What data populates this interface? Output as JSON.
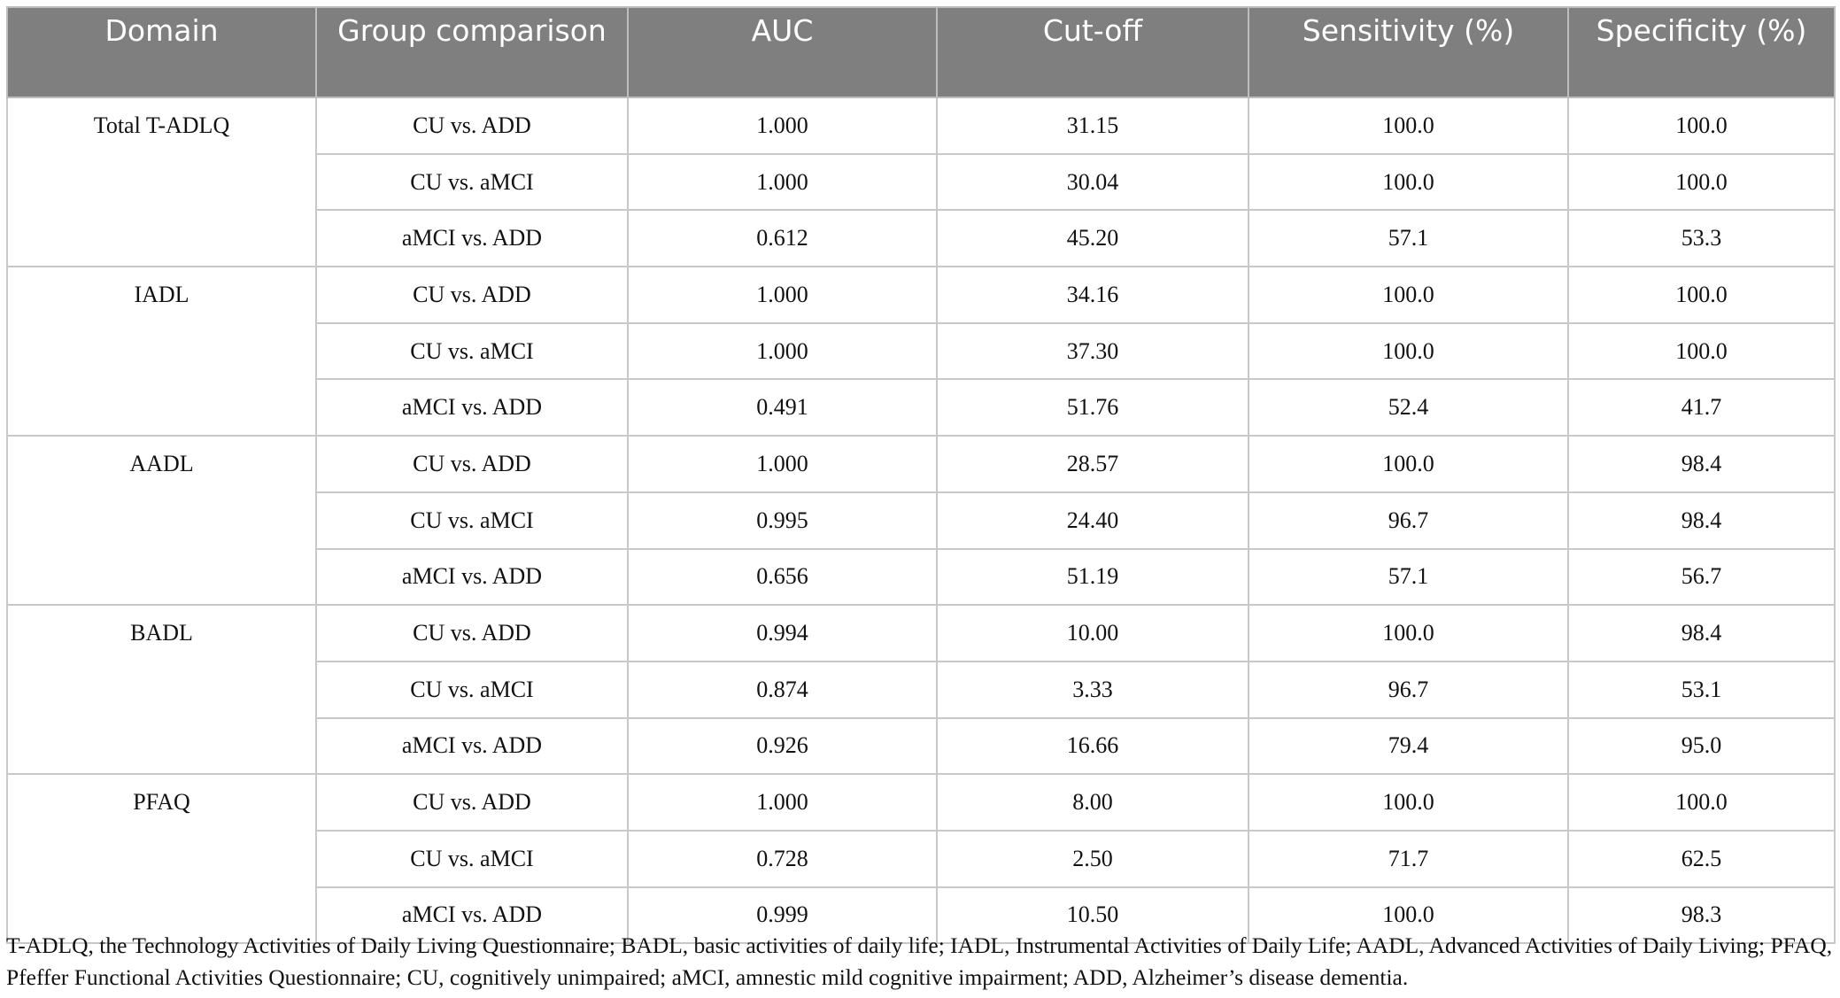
{
  "table": {
    "columns": [
      "Domain",
      "Group comparison",
      "AUC",
      "Cut-off",
      "Sensitivity (%)",
      "Specificity (%)"
    ],
    "groups": [
      {
        "domain": "Total T-ADLQ",
        "rows": [
          [
            "CU vs. ADD",
            "1.000",
            "31.15",
            "100.0",
            "100.0"
          ],
          [
            "CU vs. aMCI",
            "1.000",
            "30.04",
            "100.0",
            "100.0"
          ],
          [
            "aMCI vs. ADD",
            "0.612",
            "45.20",
            "57.1",
            "53.3"
          ]
        ]
      },
      {
        "domain": "IADL",
        "rows": [
          [
            "CU vs. ADD",
            "1.000",
            "34.16",
            "100.0",
            "100.0"
          ],
          [
            "CU vs. aMCI",
            "1.000",
            "37.30",
            "100.0",
            "100.0"
          ],
          [
            "aMCI vs. ADD",
            "0.491",
            "51.76",
            "52.4",
            "41.7"
          ]
        ]
      },
      {
        "domain": "AADL",
        "rows": [
          [
            "CU vs. ADD",
            "1.000",
            "28.57",
            "100.0",
            "98.4"
          ],
          [
            "CU vs. aMCI",
            "0.995",
            "24.40",
            "96.7",
            "98.4"
          ],
          [
            "aMCI vs. ADD",
            "0.656",
            "51.19",
            "57.1",
            "56.7"
          ]
        ]
      },
      {
        "domain": "BADL",
        "rows": [
          [
            "CU vs. ADD",
            "0.994",
            "10.00",
            "100.0",
            "98.4"
          ],
          [
            "CU vs. aMCI",
            "0.874",
            "3.33",
            "96.7",
            "53.1"
          ],
          [
            "aMCI vs. ADD",
            "0.926",
            "16.66",
            "79.4",
            "95.0"
          ]
        ]
      },
      {
        "domain": "PFAQ",
        "rows": [
          [
            "CU vs. ADD",
            "1.000",
            "8.00",
            "100.0",
            "100.0"
          ],
          [
            "CU vs. aMCI",
            "0.728",
            "2.50",
            "71.7",
            "62.5"
          ],
          [
            "aMCI vs. ADD",
            "0.999",
            "10.50",
            "100.0",
            "98.3"
          ]
        ]
      }
    ]
  },
  "footnote": "T-ADLQ, the Technology Activities of Daily Living Questionnaire; BADL, basic activities of daily life; IADL, Instrumental Activities of Daily Life; AADL, Advanced Activities of Daily Living; PFAQ, Pfeffer Functional Activities Questionnaire; CU, cognitively unimpaired; aMCI, amnestic mild cognitive impairment; ADD, Alzheimer’s disease dementia."
}
